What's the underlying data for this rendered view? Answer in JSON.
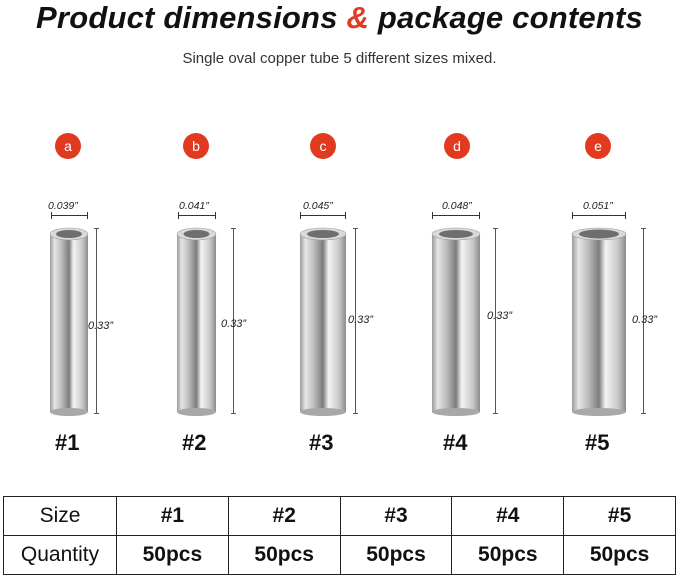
{
  "title": {
    "part1": "Product dimensions ",
    "amp": "&",
    "part2": " package contents"
  },
  "subtitle": "Single oval copper tube 5 different sizes mixed.",
  "colors": {
    "accent": "#e23a1f",
    "text": "#111111"
  },
  "items": [
    {
      "letter": "a",
      "diameter": "0.039”",
      "height": "0.33”",
      "number": "#1"
    },
    {
      "letter": "b",
      "diameter": "0.041”",
      "height": "0.33”",
      "number": "#2"
    },
    {
      "letter": "c",
      "diameter": "0.045”",
      "height": "0.33”",
      "number": "#3"
    },
    {
      "letter": "d",
      "diameter": "0.048”",
      "height": "0.33”",
      "number": "#4"
    },
    {
      "letter": "e",
      "diameter": "0.051”",
      "height": "0.33”",
      "number": "#5"
    }
  ],
  "table": {
    "size_label": "Size",
    "quantity_label": "Quantity",
    "sizes": [
      "#1",
      "#2",
      "#3",
      "#4",
      "#5"
    ],
    "quantities": [
      "50pcs",
      "50pcs",
      "50pcs",
      "50pcs",
      "50pcs"
    ]
  }
}
